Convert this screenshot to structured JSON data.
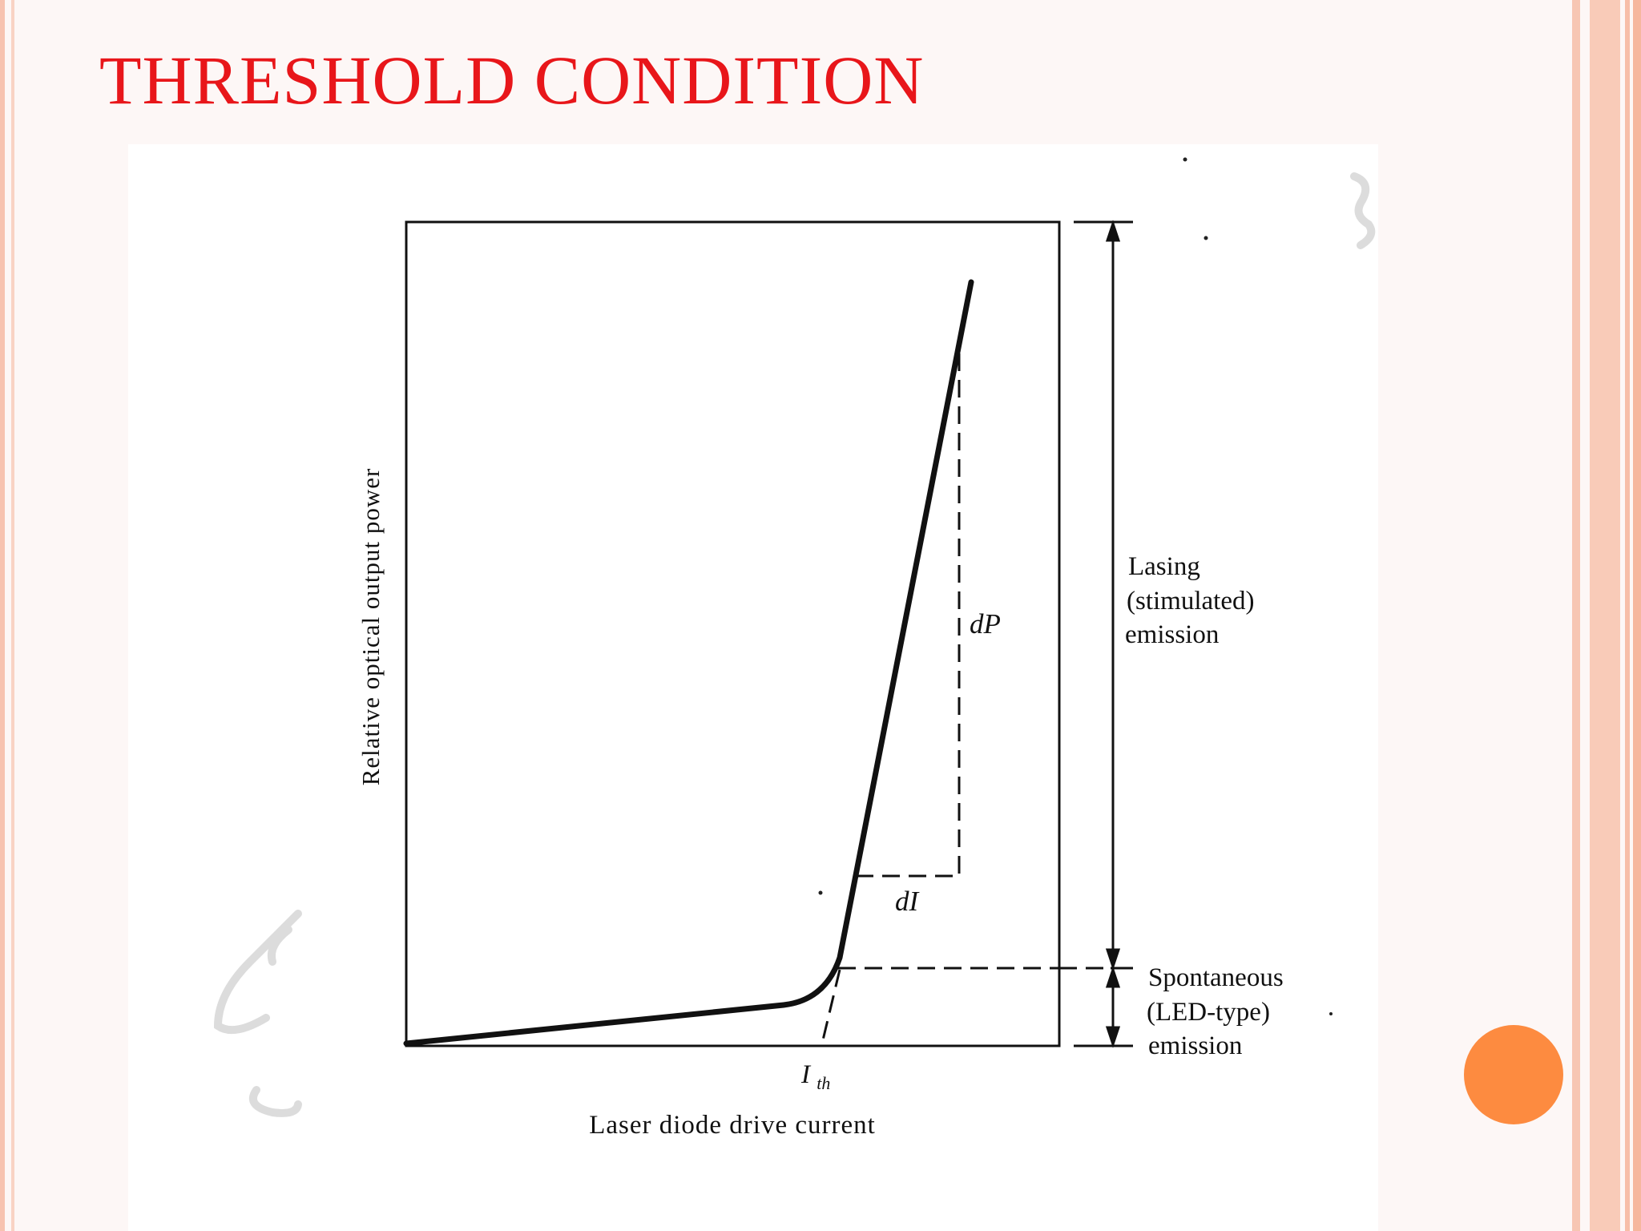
{
  "slide": {
    "title": "THRESHOLD CONDITION",
    "accent_color": "#e8161a",
    "circle_color": "#fd8b40"
  },
  "diagram": {
    "y_axis_label": "Relative optical output power",
    "x_axis_label": "Laser diode drive current",
    "threshold_label_main": "I",
    "threshold_label_sub": "th",
    "dp_label": "dP",
    "di_label": "dI",
    "lasing_region": {
      "line1": "Lasing",
      "line2": "(stimulated)",
      "line3": "emission"
    },
    "spontaneous_region": {
      "line1": "Spontaneous",
      "line2": "(LED-type)",
      "line3": "emission"
    }
  }
}
